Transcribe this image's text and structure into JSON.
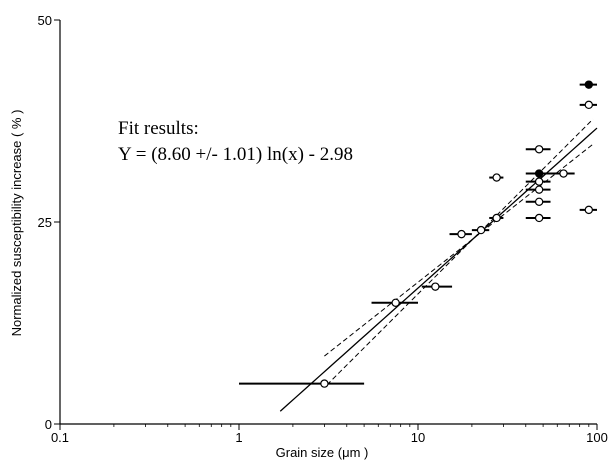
{
  "chart_data": {
    "type": "scatter",
    "title": "",
    "xlabel": "Grain size (μm )",
    "ylabel": "Normalized susceptibility increase  ( % )",
    "x_scale": "log",
    "xlim": [
      0.1,
      100
    ],
    "ylim": [
      0,
      50
    ],
    "x_ticks": [
      {
        "value": 0.1,
        "label": "0.1"
      },
      {
        "value": 1,
        "label": "1"
      },
      {
        "value": 10,
        "label": "10"
      },
      {
        "value": 100,
        "label": "100"
      }
    ],
    "y_ticks": [
      {
        "value": 0,
        "label": "0"
      },
      {
        "value": 25,
        "label": "25"
      },
      {
        "value": 50,
        "label": "50"
      }
    ],
    "annotations": [
      "Fit results:",
      "Y = (8.60 +/- 1.01) ln(x) - 2.98"
    ],
    "points": [
      {
        "x": 3.0,
        "y": 5.0,
        "xmin": 1.0,
        "xmax": 5.0,
        "filled": false
      },
      {
        "x": 7.5,
        "y": 15.0,
        "xmin": 5.5,
        "xmax": 10.0,
        "filled": false
      },
      {
        "x": 12.5,
        "y": 17.0,
        "xmin": 10.5,
        "xmax": 15.5,
        "filled": false
      },
      {
        "x": 17.5,
        "y": 23.5,
        "xmin": 15.0,
        "xmax": 20.0,
        "filled": false
      },
      {
        "x": 22.5,
        "y": 24.0,
        "xmin": 20.0,
        "xmax": 25.0,
        "filled": false
      },
      {
        "x": 27.5,
        "y": 25.5,
        "xmin": 25.0,
        "xmax": 30.0,
        "filled": false
      },
      {
        "x": 27.5,
        "y": 30.5,
        "xmin": 25.0,
        "xmax": 30.0,
        "filled": false
      },
      {
        "x": 47.5,
        "y": 34.0,
        "xmin": 40.0,
        "xmax": 55.0,
        "filled": false
      },
      {
        "x": 47.5,
        "y": 31.0,
        "xmin": 40.0,
        "xmax": 55.0,
        "filled": true
      },
      {
        "x": 47.5,
        "y": 30.0,
        "xmin": 40.0,
        "xmax": 55.0,
        "filled": false
      },
      {
        "x": 47.5,
        "y": 29.0,
        "xmin": 40.0,
        "xmax": 55.0,
        "filled": false
      },
      {
        "x": 47.5,
        "y": 27.5,
        "xmin": 40.0,
        "xmax": 55.0,
        "filled": false
      },
      {
        "x": 47.5,
        "y": 25.5,
        "xmin": 40.0,
        "xmax": 55.0,
        "filled": false
      },
      {
        "x": 65.0,
        "y": 31.0,
        "xmin": 55.0,
        "xmax": 75.0,
        "filled": false
      },
      {
        "x": 90.0,
        "y": 42.0,
        "xmin": 80.0,
        "xmax": 100.0,
        "filled": true
      },
      {
        "x": 90.0,
        "y": 39.5,
        "xmin": 80.0,
        "xmax": 100.0,
        "filled": false
      },
      {
        "x": 90.0,
        "y": 26.5,
        "xmin": 80.0,
        "xmax": 100.0,
        "filled": false
      }
    ],
    "fit_line": {
      "x_range": [
        1.7,
        100
      ],
      "slope": 8.6,
      "intercept": -2.98
    },
    "confidence_bands": [
      {
        "x_range": [
          3,
          95
        ],
        "slope": 7.59,
        "intercept": 0.07
      },
      {
        "x_range": [
          3.1,
          95
        ],
        "slope": 9.61,
        "intercept": -6.03
      }
    ],
    "grid": false,
    "legend": "none"
  }
}
